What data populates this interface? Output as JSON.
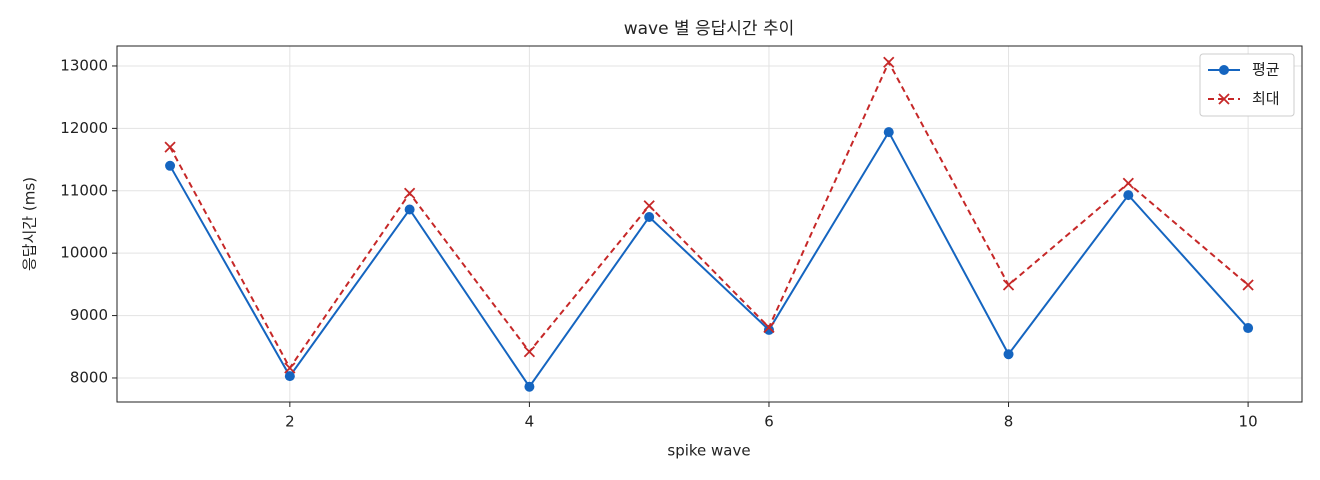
{
  "chart_data": {
    "type": "line",
    "title": "wave 별 응답시간 추이",
    "x_label": "spike wave",
    "y_label": "응답시간 (ms)",
    "x": [
      1,
      2,
      3,
      4,
      5,
      6,
      7,
      8,
      9,
      10
    ],
    "series": [
      {
        "name": "평균",
        "color": "#1565c0",
        "marker": "circle",
        "dash": false,
        "values": [
          11400,
          8030,
          10700,
          7860,
          10580,
          8770,
          11940,
          8380,
          10930,
          8800
        ]
      },
      {
        "name": "최대",
        "color": "#c62828",
        "marker": "x",
        "dash": true,
        "values": [
          11700,
          8160,
          10960,
          8420,
          10760,
          8810,
          13060,
          9490,
          11120,
          9490
        ]
      }
    ],
    "xlim": [
      0.557,
      10.45
    ],
    "xticks": [
      2,
      4,
      6,
      8,
      10
    ],
    "ylim": [
      7615,
      13320
    ],
    "yticks": [
      8000,
      9000,
      10000,
      11000,
      12000,
      13000
    ],
    "grid": true,
    "legend": "upper right"
  }
}
